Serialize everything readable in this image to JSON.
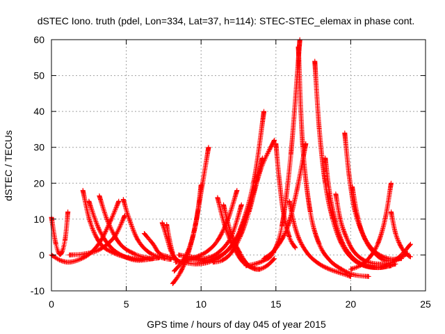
{
  "chart_data": {
    "type": "scatter",
    "title": "dSTEC Iono. truth (pdel, Lon=334, Lat=37, h=114): STEC-STEC_elemax in phase cont.",
    "xlabel": "GPS time / hours of day 045 of year 2015",
    "ylabel": "dSTEC  / TECUs",
    "xlim": [
      0,
      25
    ],
    "ylim": [
      -10,
      60
    ],
    "x_ticks": [
      0,
      5,
      10,
      15,
      20,
      25
    ],
    "y_ticks": [
      -10,
      0,
      10,
      20,
      30,
      40,
      50,
      60
    ],
    "x_tick_labels": [
      "0",
      "5",
      "10",
      "15",
      "20",
      "25"
    ],
    "y_tick_labels": [
      "-10",
      "0",
      "10",
      "20",
      "30",
      "40",
      "50",
      "60"
    ],
    "grid": true,
    "marker": "plus",
    "color": "#ff0000",
    "series": [
      {
        "x": [
          0.0,
          0.3,
          0.6,
          0.9,
          1.1
        ],
        "y": [
          10.5,
          3.0,
          0.2,
          4.0,
          12.0
        ]
      },
      {
        "x": [
          0.0,
          0.6,
          1.2,
          1.9,
          2.6,
          3.3,
          4.0,
          4.5
        ],
        "y": [
          0.0,
          -1.5,
          -2.0,
          -1.2,
          0.5,
          4.0,
          10.0,
          15.0
        ]
      },
      {
        "x": [
          2.1,
          2.6,
          3.3,
          4.2,
          5.2,
          6.2,
          7.2
        ],
        "y": [
          18.0,
          9.0,
          3.0,
          0.5,
          -0.8,
          -1.2,
          -0.8
        ]
      },
      {
        "x": [
          2.5,
          3.2,
          4.0,
          4.9,
          5.8,
          6.8
        ],
        "y": [
          15.0,
          7.0,
          2.0,
          -0.5,
          -1.5,
          -1.0
        ]
      },
      {
        "x": [
          3.2,
          3.8,
          4.6,
          5.6,
          6.6
        ],
        "y": [
          16.5,
          9.0,
          3.0,
          0.2,
          -1.0
        ]
      },
      {
        "x": [
          4.8,
          5.2,
          5.8,
          6.6,
          7.6,
          8.0
        ],
        "y": [
          15.5,
          10.0,
          4.0,
          0.5,
          -1.0,
          -1.2
        ]
      },
      {
        "x": [
          1.2,
          2.2,
          3.2,
          4.2,
          4.9
        ],
        "y": [
          0.0,
          0.3,
          1.5,
          5.0,
          11.0
        ]
      },
      {
        "x": [
          6.2,
          6.8,
          7.2,
          7.8,
          8.3
        ],
        "y": [
          6.0,
          3.0,
          0.5,
          -0.5,
          -1.0
        ]
      },
      {
        "x": [
          7.4,
          7.7,
          8.0,
          8.3,
          8.6
        ],
        "y": [
          9.0,
          5.0,
          1.0,
          -1.0,
          -2.0
        ]
      },
      {
        "x": [
          7.7,
          7.9,
          8.1,
          8.3
        ],
        "y": [
          8.5,
          4.0,
          0.5,
          -1.5
        ]
      },
      {
        "x": [
          8.1,
          8.6,
          9.1,
          9.6,
          10.1,
          10.5
        ],
        "y": [
          -8.0,
          -5.0,
          0.0,
          8.0,
          20.0,
          30.0
        ]
      },
      {
        "x": [
          8.2,
          8.8,
          9.3,
          9.7,
          10.0
        ],
        "y": [
          -4.5,
          -1.5,
          3.0,
          10.0,
          19.5
        ]
      },
      {
        "x": [
          8.3,
          9.0,
          9.7,
          10.4,
          11.1,
          11.8,
          12.4
        ],
        "y": [
          -2.0,
          -1.5,
          -0.5,
          1.0,
          4.0,
          10.0,
          18.0
        ]
      },
      {
        "x": [
          8.5,
          9.3,
          10.2,
          11.1,
          12.0,
          12.7
        ],
        "y": [
          0.0,
          -0.5,
          -1.0,
          0.5,
          5.0,
          14.0
        ]
      },
      {
        "x": [
          8.8,
          9.6,
          10.5,
          11.4,
          12.3,
          13.2,
          14.1
        ],
        "y": [
          -2.0,
          -2.5,
          -2.0,
          0.0,
          4.0,
          13.0,
          27.0
        ]
      },
      {
        "x": [
          9.0,
          9.9,
          10.8,
          11.7,
          12.6,
          13.5,
          14.2
        ],
        "y": [
          -1.0,
          -1.5,
          -1.0,
          1.0,
          7.0,
          20.0,
          40.0
        ]
      },
      {
        "x": [
          10.8,
          11.4,
          12.0,
          12.6,
          13.2,
          14.0,
          14.9
        ],
        "y": [
          -2.0,
          -1.5,
          0.5,
          5.0,
          12.0,
          24.0,
          32.0
        ]
      },
      {
        "x": [
          11.1,
          11.6,
          12.2,
          12.8,
          13.4,
          13.9
        ],
        "y": [
          16.0,
          8.0,
          2.0,
          -2.0,
          -3.5,
          -4.0
        ]
      },
      {
        "x": [
          11.5,
          12.0,
          12.6,
          13.2,
          13.8,
          14.4,
          14.9
        ],
        "y": [
          14.0,
          6.0,
          0.5,
          -3.0,
          -4.0,
          -3.0,
          -1.0
        ]
      },
      {
        "x": [
          13.0,
          13.6,
          14.2,
          14.8,
          15.4,
          16.0,
          16.6
        ],
        "y": [
          -3.0,
          -2.5,
          -1.5,
          0.5,
          8.0,
          28.0,
          60.0
        ]
      },
      {
        "x": [
          14.2,
          14.7,
          15.2,
          15.8,
          16.4,
          17.0
        ],
        "y": [
          -1.0,
          0.5,
          3.0,
          8.0,
          18.0,
          31.0
        ]
      },
      {
        "x": [
          15.0,
          15.2,
          15.5,
          15.9,
          16.3
        ],
        "y": [
          31.0,
          22.0,
          12.0,
          5.0,
          2.0
        ]
      },
      {
        "x": [
          15.9,
          16.2,
          16.6,
          17.2,
          17.9,
          18.6,
          19.3,
          20.0
        ],
        "y": [
          15.0,
          9.0,
          4.0,
          0.0,
          -2.5,
          -4.0,
          -5.0,
          -6.0
        ]
      },
      {
        "x": [
          16.5,
          16.8,
          17.3,
          17.9,
          18.6,
          19.4,
          20.2,
          21.2
        ],
        "y": [
          58.0,
          30.0,
          12.0,
          3.0,
          -1.5,
          -4.0,
          -5.5,
          -6.0
        ]
      },
      {
        "x": [
          17.6,
          17.9,
          18.3,
          18.8,
          19.4,
          20.1,
          20.9,
          21.8,
          22.7
        ],
        "y": [
          54.0,
          35.0,
          20.0,
          10.0,
          3.0,
          -1.0,
          -3.0,
          -3.5,
          -3.0
        ]
      },
      {
        "x": [
          18.3,
          18.6,
          19.0,
          19.5,
          20.2,
          21.0,
          22.0,
          23.0
        ],
        "y": [
          27.0,
          17.0,
          9.0,
          3.0,
          -1.0,
          -3.0,
          -3.5,
          -2.5
        ]
      },
      {
        "x": [
          19.0,
          19.3,
          19.7,
          20.2,
          20.9,
          21.8,
          22.8,
          23.8
        ],
        "y": [
          17.0,
          10.0,
          5.0,
          1.0,
          -1.5,
          -2.5,
          -2.0,
          0.5
        ]
      },
      {
        "x": [
          19.6,
          19.9,
          20.3,
          20.9,
          21.6,
          22.5,
          23.4
        ],
        "y": [
          34.0,
          22.0,
          12.0,
          5.0,
          1.0,
          -1.0,
          -1.0
        ]
      },
      {
        "x": [
          20.1,
          20.5,
          21.0,
          21.6,
          22.3,
          23.1,
          24.0
        ],
        "y": [
          19.0,
          10.0,
          4.0,
          0.5,
          -1.5,
          -1.0,
          3.0
        ]
      },
      {
        "x": [
          20.0,
          20.6,
          21.2,
          21.8,
          22.3,
          22.7
        ],
        "y": [
          -4.0,
          -3.0,
          -1.0,
          3.0,
          10.0,
          20.0
        ]
      },
      {
        "x": [
          22.7,
          23.0,
          23.4,
          23.8,
          24.0
        ],
        "y": [
          12.0,
          6.0,
          2.0,
          0.0,
          -0.5
        ]
      }
    ]
  }
}
